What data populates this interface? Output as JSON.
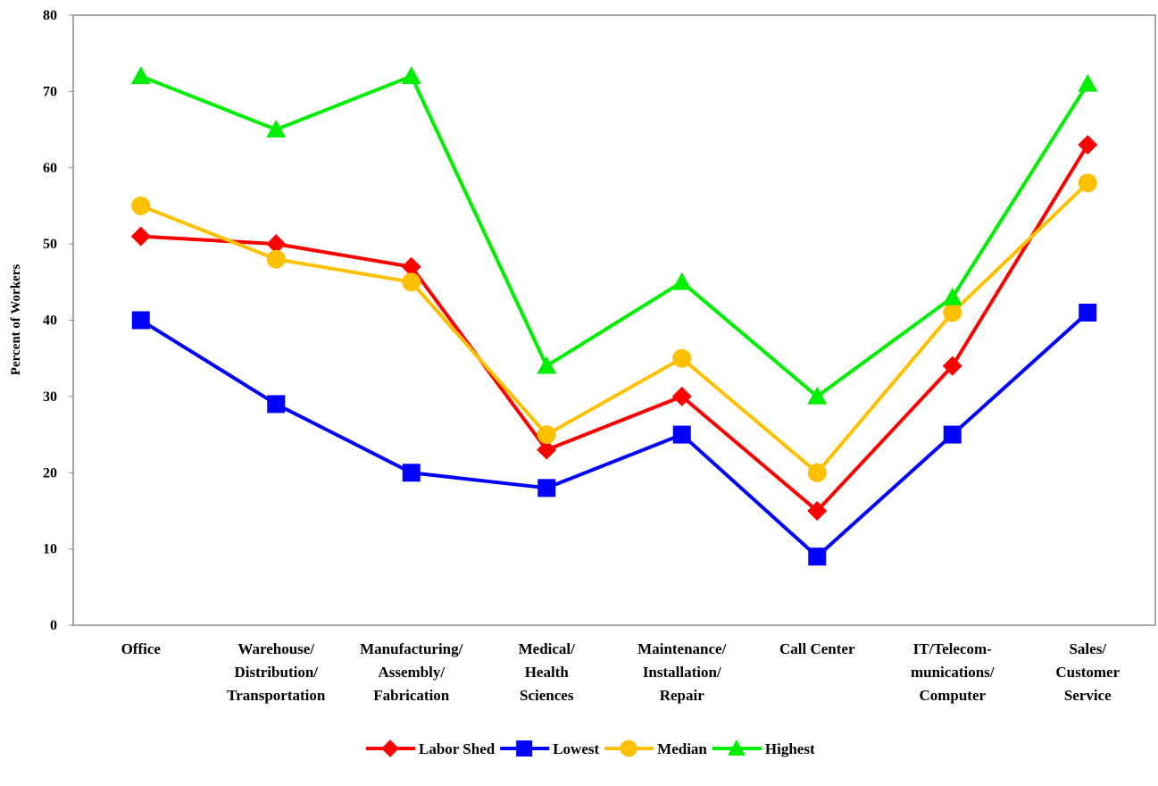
{
  "chart_data": {
    "type": "line",
    "title": "",
    "xlabel": "",
    "ylabel": "Percent of Workers",
    "ylim": [
      0,
      80
    ],
    "yticks": [
      "0",
      "10",
      "20",
      "30",
      "40",
      "50",
      "60",
      "70",
      "80"
    ],
    "grid": false,
    "legend_position": "bottom",
    "categories": [
      [
        "Office"
      ],
      [
        "Warehouse/",
        "Distribution/",
        "Transportation"
      ],
      [
        "Manufacturing/",
        "Assembly/",
        "Fabrication"
      ],
      [
        "Medical/",
        "Health",
        "Sciences"
      ],
      [
        "Maintenance/",
        "Installation/",
        "Repair"
      ],
      [
        "Call Center"
      ],
      [
        "IT/Telecom-",
        "munications/",
        "Computer"
      ],
      [
        "Sales/",
        "Customer",
        "Service"
      ]
    ],
    "series": [
      {
        "name": "Labor Shed",
        "color": "#ff0000",
        "marker": "diamond",
        "values": [
          51,
          50,
          47,
          23,
          30,
          15,
          34,
          63
        ]
      },
      {
        "name": "Lowest",
        "color": "#0000ff",
        "marker": "square",
        "values": [
          40,
          29,
          20,
          18,
          25,
          9,
          25,
          41
        ]
      },
      {
        "name": "Median",
        "color": "#ffc000",
        "marker": "circle",
        "values": [
          55,
          48,
          45,
          25,
          35,
          20,
          41,
          58
        ]
      },
      {
        "name": "Highest",
        "color": "#00ee00",
        "marker": "triangle",
        "values": [
          72,
          65,
          72,
          34,
          45,
          30,
          43,
          71
        ]
      }
    ]
  }
}
